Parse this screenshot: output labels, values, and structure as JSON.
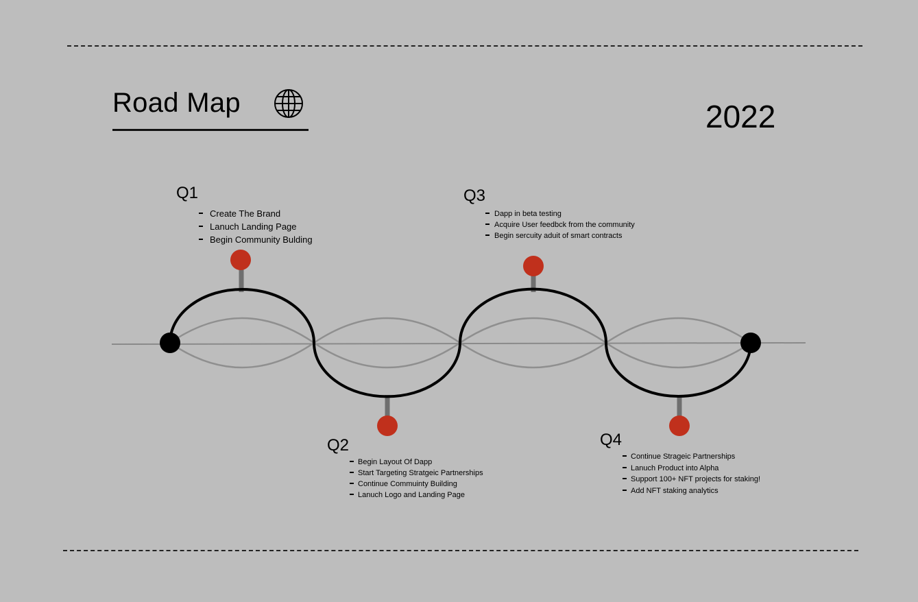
{
  "header": {
    "title": "Road Map",
    "title_icon": "globe-icon",
    "year": "2022"
  },
  "colors": {
    "background": "#bdbdbd",
    "milestone": "#c0301c",
    "endpoint": "#000000",
    "main_wave": "#000000",
    "secondary_wave": "#888888",
    "stem": "#6f6f6f"
  },
  "quarters": [
    {
      "label": "Q1",
      "items": [
        "Create The Brand",
        "Lanuch Landing Page",
        "Begin Community Bulding"
      ]
    },
    {
      "label": "Q2",
      "items": [
        "Begin Layout Of Dapp",
        "Start Targeting Stratgeic Partnerships",
        "Continue Commuinty Building",
        "Lanuch Logo and Landing Page"
      ]
    },
    {
      "label": "Q3",
      "items": [
        "Dapp in beta testing",
        "Acquire User feedbck from the community",
        "Begin sercuity aduit of smart contracts"
      ]
    },
    {
      "label": "Q4",
      "items": [
        "Continue Strageic Partnerships",
        "Lanuch Product into Alpha",
        "Support 100+ NFT projects for staking!",
        "Add NFT staking analytics"
      ]
    }
  ]
}
